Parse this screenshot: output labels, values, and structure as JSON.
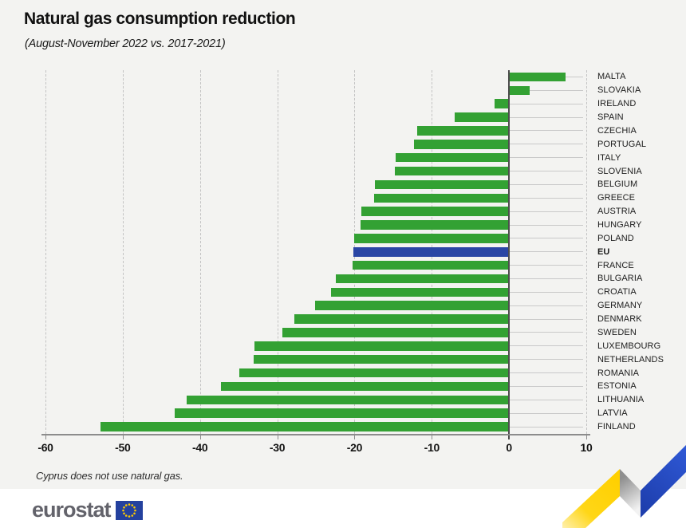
{
  "header": {
    "title": "Natural gas consumption reduction",
    "subtitle": "(August-November 2022 vs. 2017-2021)"
  },
  "chart_data": {
    "type": "bar",
    "orientation": "horizontal",
    "unit": "%",
    "title": "Natural gas consumption reduction",
    "subtitle": "(August-November 2022 vs. 2017-2021)",
    "xlabel": "",
    "ylabel": "",
    "xlim": [
      -60,
      10
    ],
    "xticks": [
      "-60",
      "-50",
      "-40",
      "-30",
      "-20",
      "-10",
      "0",
      "10"
    ],
    "grid": "vertical-dashed",
    "legend": "none",
    "highlight_label": "EU",
    "items": [
      {
        "label": "MALTA",
        "value": 7.3,
        "highlighted": false
      },
      {
        "label": "SLOVAKIA",
        "value": 2.7,
        "highlighted": false
      },
      {
        "label": "IRELAND",
        "value": -1.9,
        "highlighted": false
      },
      {
        "label": "SPAIN",
        "value": -7.0,
        "highlighted": false
      },
      {
        "label": "CZECHIA",
        "value": -11.9,
        "highlighted": false
      },
      {
        "label": "PORTUGAL",
        "value": -12.3,
        "highlighted": false
      },
      {
        "label": "ITALY",
        "value": -14.7,
        "highlighted": false
      },
      {
        "label": "SLOVENIA",
        "value": -14.8,
        "highlighted": false
      },
      {
        "label": "BELGIUM",
        "value": -17.4,
        "highlighted": false
      },
      {
        "label": "GREECE",
        "value": -17.5,
        "highlighted": false
      },
      {
        "label": "AUSTRIA",
        "value": -19.1,
        "highlighted": false
      },
      {
        "label": "HUNGARY",
        "value": -19.2,
        "highlighted": false
      },
      {
        "label": "POLAND",
        "value": -20.0,
        "highlighted": false
      },
      {
        "label": "EU",
        "value": -20.1,
        "highlighted": true
      },
      {
        "label": "FRANCE",
        "value": -20.3,
        "highlighted": false
      },
      {
        "label": "BULGARIA",
        "value": -22.4,
        "highlighted": false
      },
      {
        "label": "CROATIA",
        "value": -23.0,
        "highlighted": false
      },
      {
        "label": "GERMANY",
        "value": -25.1,
        "highlighted": false
      },
      {
        "label": "DENMARK",
        "value": -27.8,
        "highlighted": false
      },
      {
        "label": "SWEDEN",
        "value": -29.3,
        "highlighted": false
      },
      {
        "label": "LUXEMBOURG",
        "value": -32.9,
        "highlighted": false
      },
      {
        "label": "NETHERLANDS",
        "value": -33.1,
        "highlighted": false
      },
      {
        "label": "ROMANIA",
        "value": -34.9,
        "highlighted": false
      },
      {
        "label": "ESTONIA",
        "value": -37.3,
        "highlighted": false
      },
      {
        "label": "LITHUANIA",
        "value": -41.7,
        "highlighted": false
      },
      {
        "label": "LATVIA",
        "value": -43.3,
        "highlighted": false
      },
      {
        "label": "FINLAND",
        "value": -52.9,
        "highlighted": false
      }
    ],
    "colors": {
      "bar_green": "#33a133",
      "bar_highlight_blue": "#2a46a5",
      "gridline": "#c3c3c3",
      "zero_axis": "#4d4d4d",
      "background": "#f3f3f1"
    }
  },
  "footnote": "Cyprus does not use natural gas.",
  "footer": {
    "logo_text": "eurostat",
    "flag_icon": "eu-flag-icon"
  },
  "decoration": {
    "ribbon_icon": "trend-ribbon-icon",
    "ribbon_colors": {
      "yellow": "#ffd617",
      "blue": "#2c50c8",
      "gray_fold": "#9a9a9a"
    }
  }
}
